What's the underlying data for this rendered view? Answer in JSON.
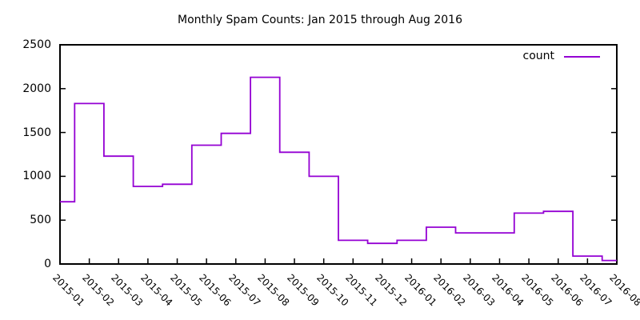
{
  "title": "Monthly Spam Counts: Jan 2015 through Aug 2016",
  "legend": {
    "label": "count",
    "position": "top-right-inside"
  },
  "colors": {
    "line": "#9400d3",
    "axis": "#000000",
    "text": "#000000",
    "background": "#ffffff"
  },
  "chart_data": {
    "type": "line",
    "style": "step-histeps",
    "title": "Monthly Spam Counts: Jan 2015 through Aug 2016",
    "categories": [
      "2015-01",
      "2015-02",
      "2015-03",
      "2015-04",
      "2015-05",
      "2015-06",
      "2015-07",
      "2015-08",
      "2015-09",
      "2015-10",
      "2015-11",
      "2015-12",
      "2016-01",
      "2016-02",
      "2016-03",
      "2016-04",
      "2016-05",
      "2016-06",
      "2016-07",
      "2016-08"
    ],
    "series": [
      {
        "name": "count",
        "color": "#9400d3",
        "values": [
          710,
          1830,
          1230,
          885,
          910,
          1355,
          1490,
          2130,
          1275,
          1000,
          270,
          235,
          270,
          420,
          355,
          355,
          580,
          600,
          90,
          40
        ]
      }
    ],
    "xlabel": "",
    "ylabel": "",
    "ylim": [
      0,
      2500
    ],
    "yticks": [
      0,
      500,
      1000,
      1500,
      2000,
      2500
    ],
    "grid": false,
    "legend_position": "top-right"
  }
}
